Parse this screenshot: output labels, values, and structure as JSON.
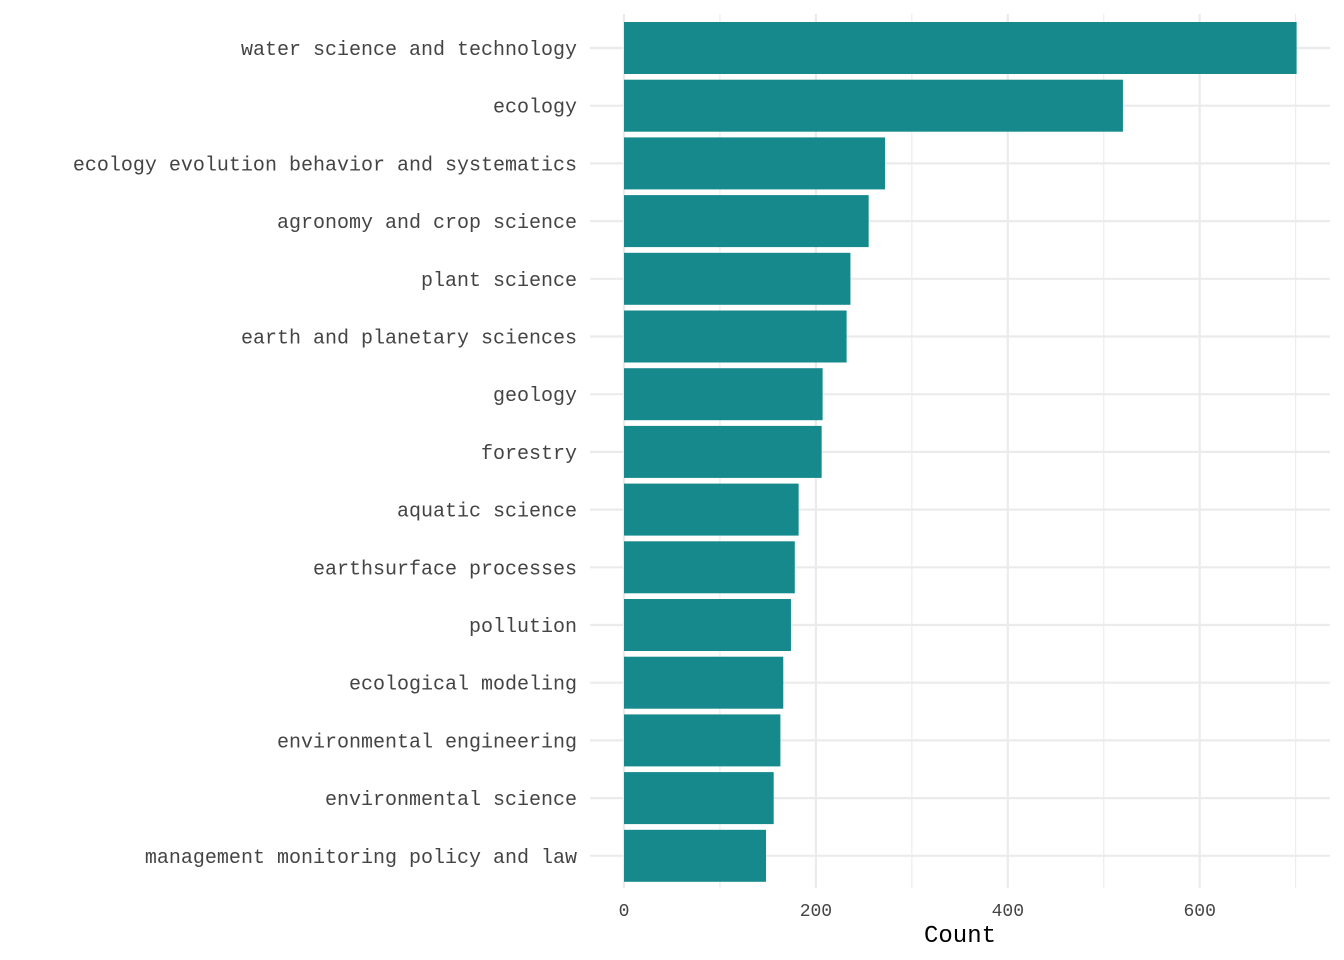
{
  "chart_data": {
    "type": "bar",
    "orientation": "horizontal",
    "categories": [
      "water science and technology",
      "ecology",
      "ecology evolution behavior and systematics",
      "agronomy and crop science",
      "plant science",
      "earth and planetary sciences",
      "geology",
      "forestry",
      "aquatic science",
      "earthsurface processes",
      "pollution",
      "ecological modeling",
      "environmental engineering",
      "environmental science",
      "management monitoring policy and law"
    ],
    "values": [
      701,
      520,
      272,
      255,
      236,
      232,
      207,
      206,
      182,
      178,
      174,
      166,
      163,
      156,
      148
    ],
    "xlabel": "Count",
    "ylabel": "",
    "xlim": [
      0,
      735
    ],
    "xticks": [
      0,
      200,
      400,
      600
    ],
    "grid": true,
    "bar_color": "#16898D",
    "grid_color": "#EBEBEB"
  }
}
